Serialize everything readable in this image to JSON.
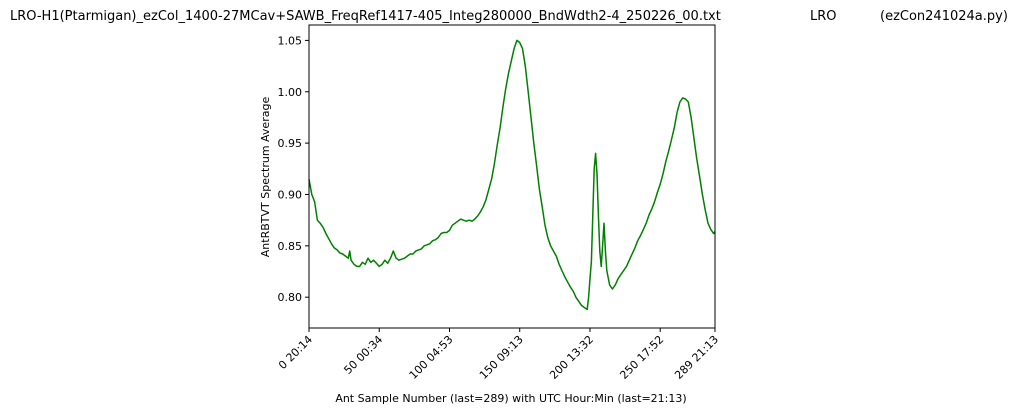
{
  "header": {
    "title_left": "LRO-H1(Ptarmigan)_ezCol_1400-27MCav+SAWB_FreqRef1417-405_Integ280000_BndWdth2-4_250226_00.txt",
    "title_center": "LRO",
    "title_right": "(ezCon241024a.py)"
  },
  "chart_data": {
    "type": "line",
    "xlabel": "Ant Sample Number (last=289) with UTC Hour:Min (last=21:13)",
    "ylabel": "AntRBTVT Spectrum Average",
    "xlim": [
      0,
      289
    ],
    "ylim": [
      0.77,
      1.065
    ],
    "grid": false,
    "line_color": "#008000",
    "x_ticks": [
      {
        "value": 0,
        "label": "0  20:14"
      },
      {
        "value": 50,
        "label": "50  00:34"
      },
      {
        "value": 100,
        "label": "100  04:53"
      },
      {
        "value": 150,
        "label": "150  09:13"
      },
      {
        "value": 200,
        "label": "200  13:32"
      },
      {
        "value": 250,
        "label": "250  17:52"
      },
      {
        "value": 289,
        "label": "289  21:13"
      }
    ],
    "y_ticks": [
      {
        "value": 0.8,
        "label": "0.80"
      },
      {
        "value": 0.85,
        "label": "0.85"
      },
      {
        "value": 0.9,
        "label": "0.90"
      },
      {
        "value": 0.95,
        "label": "0.95"
      },
      {
        "value": 1.0,
        "label": "1.00"
      },
      {
        "value": 1.05,
        "label": "1.05"
      }
    ],
    "series": [
      {
        "points": [
          [
            0,
            0.915
          ],
          [
            2,
            0.9
          ],
          [
            4,
            0.893
          ],
          [
            6,
            0.875
          ],
          [
            8,
            0.872
          ],
          [
            10,
            0.868
          ],
          [
            12,
            0.862
          ],
          [
            14,
            0.857
          ],
          [
            16,
            0.852
          ],
          [
            18,
            0.848
          ],
          [
            20,
            0.846
          ],
          [
            22,
            0.843
          ],
          [
            24,
            0.842
          ],
          [
            26,
            0.84
          ],
          [
            28,
            0.838
          ],
          [
            29,
            0.845
          ],
          [
            30,
            0.836
          ],
          [
            32,
            0.832
          ],
          [
            34,
            0.83
          ],
          [
            36,
            0.83
          ],
          [
            38,
            0.834
          ],
          [
            40,
            0.832
          ],
          [
            42,
            0.838
          ],
          [
            44,
            0.834
          ],
          [
            46,
            0.836
          ],
          [
            48,
            0.833
          ],
          [
            50,
            0.83
          ],
          [
            52,
            0.832
          ],
          [
            54,
            0.836
          ],
          [
            56,
            0.833
          ],
          [
            58,
            0.838
          ],
          [
            60,
            0.845
          ],
          [
            62,
            0.838
          ],
          [
            64,
            0.836
          ],
          [
            66,
            0.837
          ],
          [
            68,
            0.838
          ],
          [
            70,
            0.84
          ],
          [
            72,
            0.842
          ],
          [
            74,
            0.842
          ],
          [
            76,
            0.845
          ],
          [
            78,
            0.846
          ],
          [
            80,
            0.847
          ],
          [
            82,
            0.85
          ],
          [
            84,
            0.851
          ],
          [
            86,
            0.852
          ],
          [
            88,
            0.855
          ],
          [
            90,
            0.856
          ],
          [
            92,
            0.858
          ],
          [
            94,
            0.862
          ],
          [
            96,
            0.863
          ],
          [
            98,
            0.863
          ],
          [
            100,
            0.865
          ],
          [
            102,
            0.87
          ],
          [
            104,
            0.872
          ],
          [
            106,
            0.874
          ],
          [
            108,
            0.876
          ],
          [
            110,
            0.875
          ],
          [
            112,
            0.874
          ],
          [
            114,
            0.875
          ],
          [
            116,
            0.874
          ],
          [
            118,
            0.876
          ],
          [
            120,
            0.879
          ],
          [
            122,
            0.883
          ],
          [
            124,
            0.888
          ],
          [
            126,
            0.895
          ],
          [
            128,
            0.905
          ],
          [
            130,
            0.915
          ],
          [
            132,
            0.93
          ],
          [
            134,
            0.948
          ],
          [
            136,
            0.965
          ],
          [
            138,
            0.985
          ],
          [
            140,
            1.003
          ],
          [
            142,
            1.018
          ],
          [
            144,
            1.03
          ],
          [
            146,
            1.042
          ],
          [
            148,
            1.05
          ],
          [
            150,
            1.048
          ],
          [
            152,
            1.042
          ],
          [
            154,
            1.025
          ],
          [
            156,
            1.0
          ],
          [
            158,
            0.975
          ],
          [
            160,
            0.95
          ],
          [
            162,
            0.928
          ],
          [
            164,
            0.905
          ],
          [
            166,
            0.888
          ],
          [
            168,
            0.87
          ],
          [
            170,
            0.858
          ],
          [
            172,
            0.85
          ],
          [
            174,
            0.845
          ],
          [
            176,
            0.84
          ],
          [
            178,
            0.832
          ],
          [
            180,
            0.826
          ],
          [
            182,
            0.82
          ],
          [
            184,
            0.815
          ],
          [
            186,
            0.81
          ],
          [
            188,
            0.806
          ],
          [
            190,
            0.8
          ],
          [
            192,
            0.796
          ],
          [
            194,
            0.792
          ],
          [
            196,
            0.79
          ],
          [
            198,
            0.788
          ],
          [
            199,
            0.8
          ],
          [
            200,
            0.818
          ],
          [
            201,
            0.835
          ],
          [
            202,
            0.88
          ],
          [
            203,
            0.925
          ],
          [
            204,
            0.94
          ],
          [
            205,
            0.92
          ],
          [
            206,
            0.88
          ],
          [
            207,
            0.845
          ],
          [
            208,
            0.83
          ],
          [
            209,
            0.85
          ],
          [
            210,
            0.872
          ],
          [
            211,
            0.845
          ],
          [
            212,
            0.826
          ],
          [
            214,
            0.812
          ],
          [
            216,
            0.808
          ],
          [
            218,
            0.812
          ],
          [
            220,
            0.818
          ],
          [
            222,
            0.822
          ],
          [
            224,
            0.826
          ],
          [
            226,
            0.83
          ],
          [
            228,
            0.836
          ],
          [
            230,
            0.842
          ],
          [
            232,
            0.848
          ],
          [
            234,
            0.855
          ],
          [
            236,
            0.86
          ],
          [
            238,
            0.866
          ],
          [
            240,
            0.872
          ],
          [
            242,
            0.88
          ],
          [
            244,
            0.886
          ],
          [
            246,
            0.893
          ],
          [
            248,
            0.902
          ],
          [
            250,
            0.91
          ],
          [
            252,
            0.92
          ],
          [
            254,
            0.932
          ],
          [
            256,
            0.942
          ],
          [
            258,
            0.953
          ],
          [
            260,
            0.965
          ],
          [
            262,
            0.98
          ],
          [
            264,
            0.99
          ],
          [
            266,
            0.994
          ],
          [
            268,
            0.993
          ],
          [
            270,
            0.99
          ],
          [
            272,
            0.975
          ],
          [
            274,
            0.955
          ],
          [
            276,
            0.935
          ],
          [
            278,
            0.918
          ],
          [
            280,
            0.9
          ],
          [
            282,
            0.885
          ],
          [
            284,
            0.872
          ],
          [
            286,
            0.866
          ],
          [
            288,
            0.862
          ],
          [
            289,
            0.864
          ]
        ]
      }
    ]
  }
}
